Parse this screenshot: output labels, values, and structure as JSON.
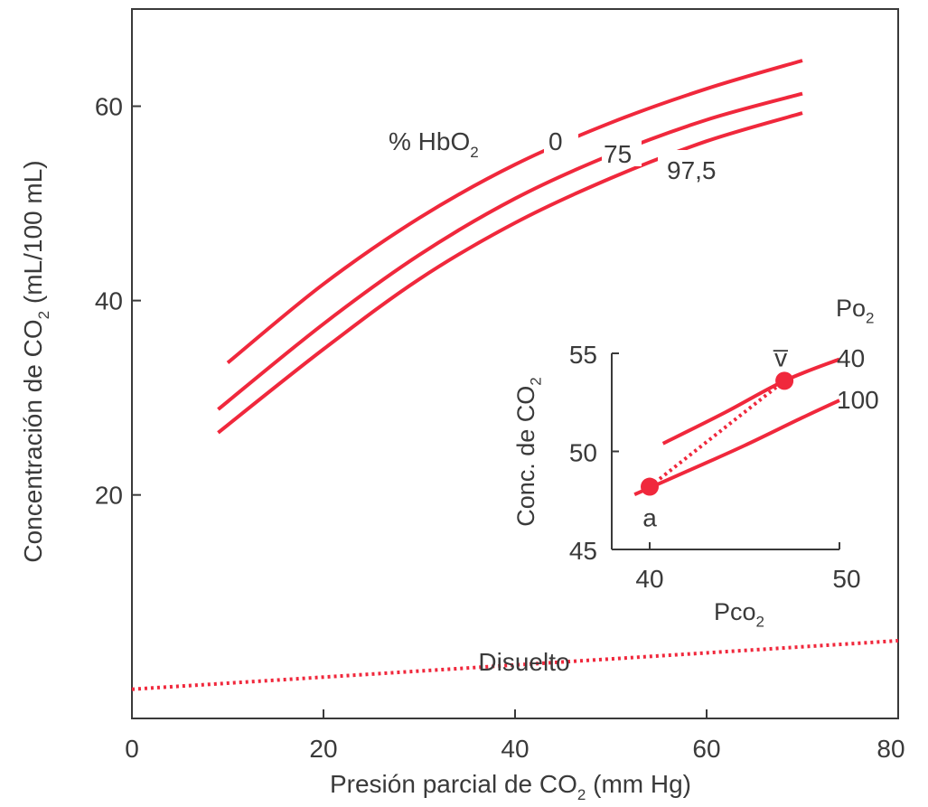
{
  "chart_data": [
    {
      "id": "main",
      "type": "line",
      "title": "",
      "xlabel": "Presión parcial de CO",
      "xlabel_sub": "2",
      "xlabel_tail": " (mm Hg)",
      "ylabel": "Concentración de CO",
      "ylabel_sub": "2",
      "ylabel_tail": " (mL/100 mL)",
      "xlim": [
        0,
        80
      ],
      "ylim": [
        -3,
        70
      ],
      "xticks": [
        0,
        20,
        40,
        60,
        80
      ],
      "yticks": [
        20,
        40,
        60
      ],
      "grid": false,
      "legend_title": "% HbO",
      "legend_title_sub": "2",
      "series": [
        {
          "name": "0",
          "style": "solid",
          "x": [
            10,
            20,
            30,
            40,
            50,
            60,
            70
          ],
          "y": [
            33.6,
            41.7,
            48.5,
            54.0,
            58.3,
            61.8,
            64.7
          ]
        },
        {
          "name": "75",
          "style": "solid",
          "x": [
            9,
            20,
            30,
            40,
            50,
            60,
            70
          ],
          "y": [
            28.8,
            37.6,
            44.7,
            50.5,
            55.0,
            58.6,
            61.3
          ]
        },
        {
          "name": "97,5",
          "style": "solid",
          "x": [
            9,
            20,
            30,
            40,
            50,
            60,
            70
          ],
          "y": [
            26.4,
            35.0,
            42.2,
            48.0,
            52.6,
            56.4,
            59.3
          ]
        },
        {
          "name": "Disuelto",
          "style": "dotted",
          "x": [
            0,
            80
          ],
          "y": [
            0,
            5.0
          ]
        }
      ]
    },
    {
      "id": "inset",
      "type": "line",
      "title": "",
      "xlabel": "Pco",
      "xlabel_sub": "2",
      "ylabel": "Conc. de CO",
      "ylabel_sub": "2",
      "xlim": [
        38,
        50
      ],
      "ylim": [
        45,
        55
      ],
      "xticks": [
        40,
        50
      ],
      "yticks": [
        45,
        50,
        55
      ],
      "legend_title": "Po",
      "legend_title_sub": "2",
      "series": [
        {
          "name": "40",
          "style": "solid",
          "x": [
            40.7,
            44,
            47.1,
            50
          ],
          "y": [
            50.4,
            52.0,
            53.6,
            54.7
          ]
        },
        {
          "name": "100",
          "style": "solid",
          "x": [
            39.2,
            42,
            45,
            48,
            50
          ],
          "y": [
            47.8,
            49.0,
            50.3,
            51.7,
            52.6
          ]
        }
      ],
      "points": [
        {
          "label": "a",
          "x": 40,
          "y": 48.2
        },
        {
          "label": "v̅",
          "x": 47.1,
          "y": 53.6
        }
      ],
      "connector": {
        "from": "a",
        "to": "v̅",
        "style": "dotted"
      }
    }
  ],
  "colors": {
    "curve": "#f0283c",
    "axis": "#3a3a3a",
    "text": "#3a3a3a"
  }
}
